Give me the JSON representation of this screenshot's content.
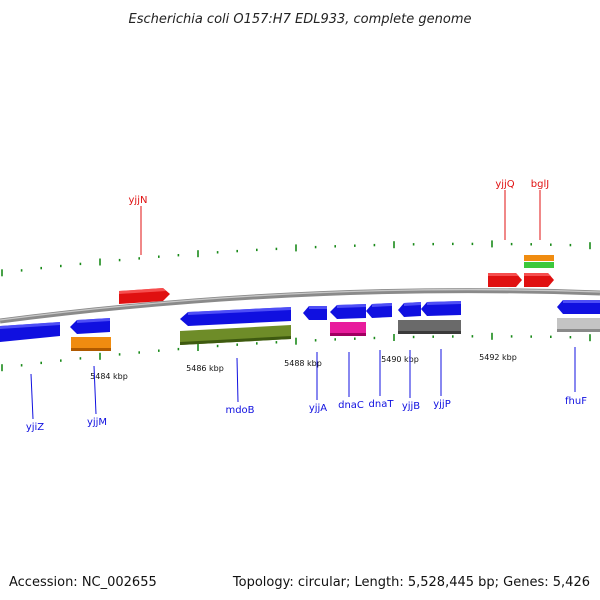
{
  "header": {
    "title": "Escherichia coli O157:H7 EDL933, complete genome"
  },
  "footer": {
    "accession": "Accession: NC_002655",
    "topology": "Topology: circular; Length: 5,528,445 bp; Genes: 5,426"
  },
  "scale": {
    "tick_labels": [
      "5484 kbp",
      "5486 kbp",
      "5488 kbp",
      "5490 kbp",
      "5492 kbp"
    ]
  },
  "colors": {
    "forward_cds": "#e01010",
    "reverse_cds": "#1010e0",
    "orange": "#f08c10",
    "green": "#3cc83c",
    "olive": "#6e8c28",
    "magenta": "#e81c9c",
    "dark_gray": "#6a6a6a",
    "light_gray": "#c0c0c0",
    "tick_green": "#1a8a1a",
    "backbone": "#808080"
  },
  "genes_top": [
    {
      "name": "yjjN",
      "color": "red"
    },
    {
      "name": "yjjQ",
      "color": "red"
    },
    {
      "name": "bglJ",
      "color": "red"
    }
  ],
  "genes_bottom": [
    {
      "name": "yjiZ",
      "color": "blue"
    },
    {
      "name": "yjjM",
      "color": "blue"
    },
    {
      "name": "mdoB",
      "color": "blue"
    },
    {
      "name": "yjjA",
      "color": "blue"
    },
    {
      "name": "dnaC",
      "color": "blue"
    },
    {
      "name": "dnaT",
      "color": "blue"
    },
    {
      "name": "yjjB",
      "color": "blue"
    },
    {
      "name": "yjjP",
      "color": "blue"
    },
    {
      "name": "fhuF",
      "color": "blue"
    }
  ]
}
